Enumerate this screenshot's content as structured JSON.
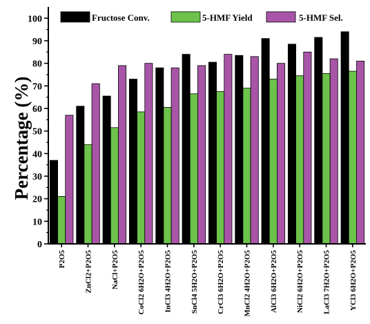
{
  "chart_data": {
    "type": "bar",
    "ylabel": "Percentage (%)",
    "xlabel": "",
    "ylim": [
      0,
      105
    ],
    "yticks": [
      0,
      10,
      20,
      30,
      40,
      50,
      60,
      70,
      80,
      90,
      100
    ],
    "grid": false,
    "legend_position": "top",
    "categories": [
      "P2O5",
      "ZnCl2+P2O5",
      "NaCl+P2O5",
      "CoCl2 6H2O+P2O5",
      "InCl3 4H2O+P2O5",
      "SnCl4 5H2O+P2O5",
      "CrCl3 6H2O+P2O5",
      "MnCl2 4H2O+P2O5",
      "AlCl3 6H2O+P2O5",
      "NiCl2 6H2O+P2O5",
      "LaCl3 7H2O+P2O5",
      "YCl3 6H2O+P2O5"
    ],
    "series": [
      {
        "name": "Fructose Conv.",
        "color": "#000000",
        "values": [
          37,
          61,
          65.5,
          73,
          78,
          84,
          80.5,
          83.5,
          91,
          88.5,
          91.5,
          94
        ]
      },
      {
        "name": "5-HMF Yield",
        "color": "#6cc24a",
        "values": [
          21,
          44,
          51.5,
          58.5,
          60.5,
          66.5,
          67.5,
          69,
          73,
          74.5,
          75.5,
          76.5
        ]
      },
      {
        "name": "5-HMF Sel.",
        "color": "#a855a8",
        "values": [
          57,
          71,
          79,
          80,
          78,
          79,
          84,
          83,
          80,
          85,
          82,
          81
        ]
      }
    ]
  }
}
